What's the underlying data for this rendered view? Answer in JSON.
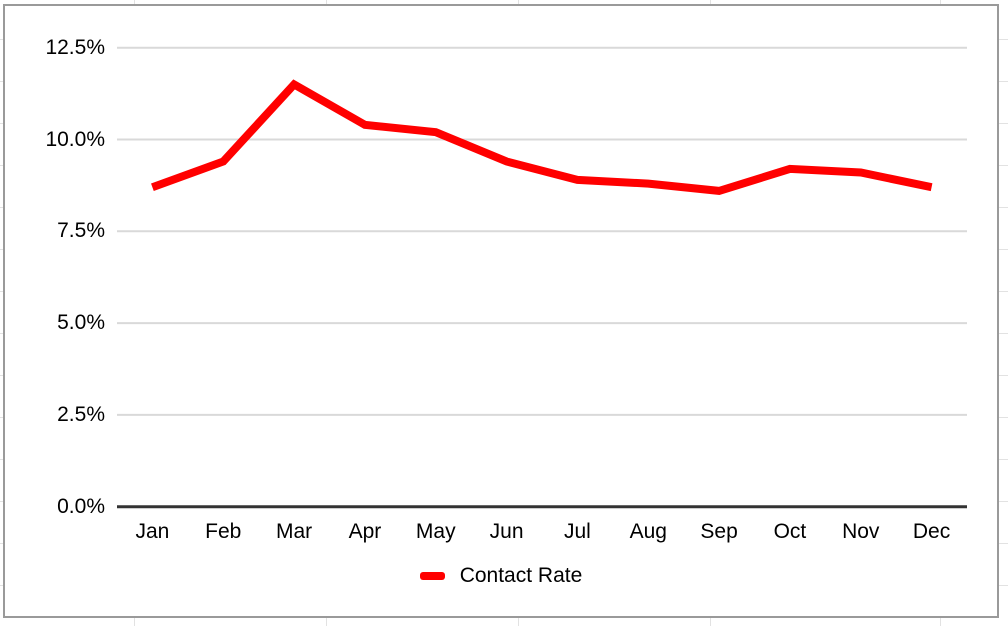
{
  "colors": {
    "line": "#ff0000",
    "gridline": "#d9d9d9",
    "axis": "#333333",
    "chart_border": "#9a9a9a",
    "sheet_gridline": "#e2e2e2",
    "text": "#000000"
  },
  "chart_data": {
    "type": "line",
    "categories": [
      "Jan",
      "Feb",
      "Mar",
      "Apr",
      "May",
      "Jun",
      "Jul",
      "Aug",
      "Sep",
      "Oct",
      "Nov",
      "Dec"
    ],
    "series": [
      {
        "name": "Contact Rate",
        "color": "#ff0000",
        "values": [
          8.7,
          9.4,
          11.5,
          10.4,
          10.2,
          9.4,
          8.9,
          8.8,
          8.6,
          9.2,
          9.1,
          8.7
        ]
      }
    ],
    "yticks": [
      0,
      2.5,
      5,
      7.5,
      10,
      12.5
    ],
    "ytick_labels": [
      "0.0%",
      "2.5%",
      "5.0%",
      "7.5%",
      "10.0%",
      "12.5%"
    ],
    "ylim": [
      0,
      12.5
    ],
    "xlabel": "",
    "ylabel": "",
    "title": "",
    "grid": true,
    "legend_position": "bottom"
  }
}
